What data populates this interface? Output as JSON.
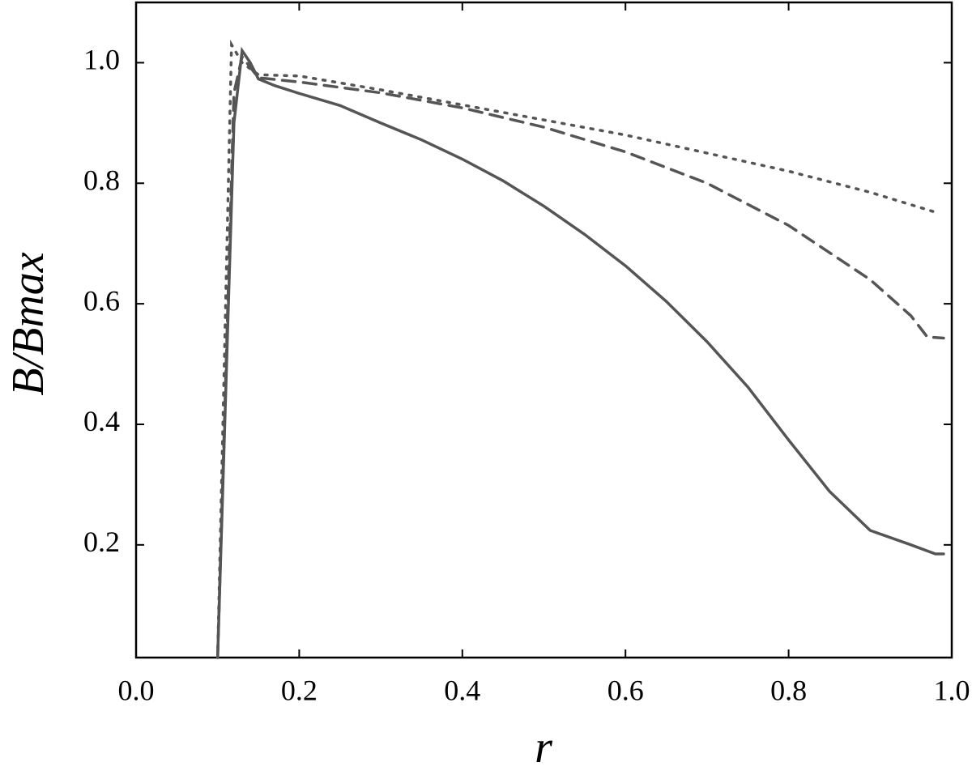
{
  "chart_data": {
    "type": "line",
    "xlabel": "r",
    "ylabel": "B/Bmax",
    "xlim": [
      0,
      1
    ],
    "ylim": [
      0.013,
      1.1
    ],
    "xticks": [
      {
        "value": 0,
        "label": "0.0"
      },
      0.2,
      0.4,
      0.6,
      0.8,
      {
        "value": 1,
        "label": "1.0"
      }
    ],
    "yticks": [
      0.2,
      0.4,
      0.6,
      0.8,
      {
        "value": 1,
        "label": "1.0"
      }
    ],
    "series": [
      {
        "color": "#555555",
        "dash": "solid",
        "x": [
          0.1,
          0.12,
          0.13,
          0.14,
          0.15,
          0.17,
          0.2,
          0.25,
          0.3,
          0.35,
          0.4,
          0.45,
          0.5,
          0.55,
          0.6,
          0.65,
          0.7,
          0.75,
          0.8,
          0.85,
          0.9,
          0.95,
          0.98,
          0.99
        ],
        "values": [
          0.013,
          0.9,
          1.02,
          1.0,
          0.973,
          0.962,
          0.949,
          0.929,
          0.9,
          0.872,
          0.84,
          0.804,
          0.762,
          0.715,
          0.663,
          0.604,
          0.537,
          0.462,
          0.374,
          0.289,
          0.224,
          0.2,
          0.185,
          0.185
        ]
      },
      {
        "color": "#555555",
        "dash": "dashed",
        "x": [
          0.1,
          0.12,
          0.13,
          0.15,
          0.2,
          0.3,
          0.4,
          0.5,
          0.6,
          0.7,
          0.8,
          0.9,
          0.95,
          0.97,
          0.99
        ],
        "values": [
          0.013,
          0.95,
          1.01,
          0.975,
          0.968,
          0.95,
          0.925,
          0.893,
          0.852,
          0.8,
          0.73,
          0.64,
          0.58,
          0.545,
          0.543
        ]
      },
      {
        "color": "#555555",
        "dash": "dotted",
        "x": [
          0.1,
          0.117,
          0.13,
          0.15,
          0.2,
          0.3,
          0.4,
          0.5,
          0.6,
          0.7,
          0.8,
          0.9,
          0.98
        ],
        "values": [
          0.013,
          1.03,
          1.0,
          0.98,
          0.978,
          0.955,
          0.93,
          0.905,
          0.88,
          0.85,
          0.82,
          0.785,
          0.752
        ]
      }
    ]
  }
}
